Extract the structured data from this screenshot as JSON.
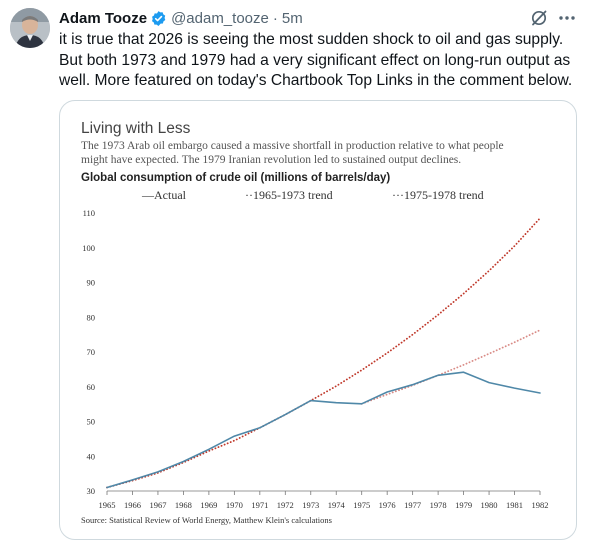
{
  "author": {
    "name": "Adam Tooze",
    "handle": "@adam_tooze",
    "separator": "·",
    "time": "5m"
  },
  "icons": {
    "verified": "verified-badge-icon",
    "grok": "grok-icon",
    "more": "more-options-icon",
    "verified_color": "#1d9bf0"
  },
  "tweet": {
    "lines": [
      "it is true that 2026 is seeing the most sudden shock to oil and gas supply.",
      "But both 1973 and 1979 had a very significant effect on long-run output as",
      "well. More featured on today's Chartbook Top Links in the comment below."
    ]
  },
  "chart_data": {
    "type": "line",
    "title": "Living with Less",
    "subtitle_lines": [
      "The 1973 Arab oil embargo caused a massive shortfall in production relative to what people",
      "might have expected. The 1979 Iranian revolution led to sustained output declines."
    ],
    "heading": "Global consumption of crude oil (millions of barrels/day)",
    "source": "Source: Statistical Review of World Energy, Matthew Klein's calculations",
    "legend_placement": "top",
    "xlim": [
      1965,
      1982
    ],
    "ylim": [
      30,
      110
    ],
    "x_ticks": [
      1965,
      1966,
      1967,
      1968,
      1969,
      1970,
      1971,
      1972,
      1973,
      1974,
      1975,
      1976,
      1977,
      1978,
      1979,
      1980,
      1981,
      1982
    ],
    "y_ticks": [
      30,
      40,
      50,
      60,
      70,
      80,
      90,
      100,
      110
    ],
    "grid": false,
    "series": [
      {
        "name": "Actual",
        "legend_label": "—Actual",
        "color": "#4f88a8",
        "style": "solid",
        "x": [
          1965,
          1966,
          1967,
          1968,
          1969,
          1970,
          1971,
          1972,
          1973,
          1974,
          1975,
          1976,
          1977,
          1978,
          1979,
          1980,
          1981,
          1982
        ],
        "y": [
          31,
          33.2,
          35.5,
          38.5,
          42,
          45.8,
          48.2,
          52,
          56,
          55.4,
          55.1,
          58.5,
          60.6,
          63.3,
          64.2,
          61.2,
          59.6,
          58.2
        ]
      },
      {
        "name": "1965-1973 trend",
        "legend_label": "··1965-1973 trend",
        "color": "#c0392b",
        "style": "dotted",
        "x": [
          1965,
          1966,
          1967,
          1968,
          1969,
          1970,
          1971,
          1972,
          1973,
          1974,
          1975,
          1976,
          1977,
          1978,
          1979,
          1980,
          1981,
          1982
        ],
        "y": [
          31,
          33,
          35.2,
          38.2,
          41.5,
          44.5,
          48.2,
          52,
          56,
          60.2,
          64.8,
          69.7,
          75,
          80.7,
          86.8,
          93.4,
          100.5,
          108.5
        ]
      },
      {
        "name": "1975-1978 trend",
        "legend_label": "···1975-1978 trend",
        "color": "#d98b86",
        "style": "dotted",
        "x": [
          1975,
          1976,
          1977,
          1978,
          1979,
          1980,
          1981,
          1982
        ],
        "y": [
          55.1,
          57.8,
          60.4,
          63.3,
          66.3,
          69.5,
          72.8,
          76.3
        ]
      }
    ]
  }
}
